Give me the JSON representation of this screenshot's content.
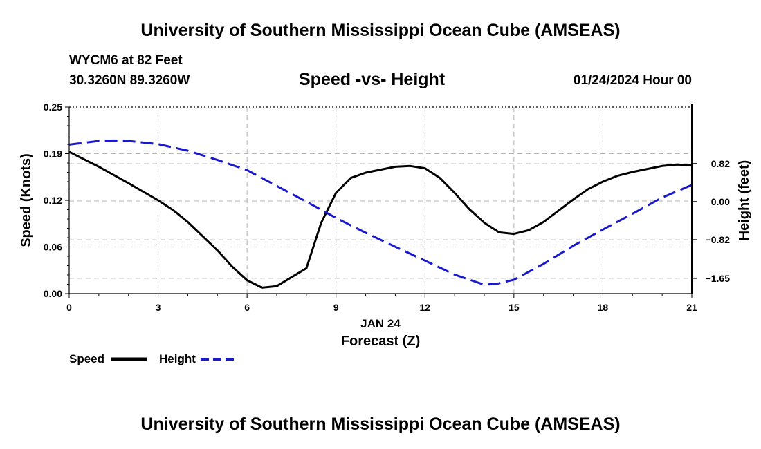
{
  "header": {
    "title": "University of Southern Mississippi Ocean Cube (AMSEAS)",
    "station": "WYCM6 at 82 Feet",
    "coordinates": "30.3260N  89.3260W",
    "chart_title": "Speed -vs- Height",
    "date": "01/24/2024 Hour 00"
  },
  "footer": {
    "title": "University of Southern Mississippi Ocean Cube (AMSEAS)"
  },
  "colors": {
    "speed": "#000000",
    "height": "#1a1acc",
    "grid": "#b4b4b4"
  },
  "chart_data": {
    "type": "line",
    "title": "Speed -vs- Height",
    "xlabel": "Forecast (Z)",
    "xlabel_date": "JAN 24",
    "ylabel": "Speed (Knots)",
    "y2label": "Height (feet)",
    "xlim": [
      0,
      21
    ],
    "ylim": [
      0,
      0.25
    ],
    "y2lim": [
      -1.98,
      2.04
    ],
    "xticks": [
      0,
      3,
      6,
      9,
      12,
      15,
      18,
      21
    ],
    "xtick_labels": [
      "0",
      "3",
      "6",
      "9",
      "12",
      "15",
      "18",
      "21"
    ],
    "yticks": [
      0,
      0.0625,
      0.125,
      0.1875,
      0.25
    ],
    "ytick_labels": [
      "0.00",
      "0.06",
      "0.12",
      "0.19",
      "0.25"
    ],
    "y2ticks": [
      -1.65,
      -0.82,
      0,
      0.82
    ],
    "y2tick_labels": [
      "−1.65",
      "−0.82",
      "0.00",
      "0.82"
    ],
    "grid": true,
    "legend_position": "bottom-left",
    "series": [
      {
        "name": "Speed",
        "axis": "left",
        "style": "solid",
        "x": [
          0,
          1,
          2,
          3,
          3.5,
          4,
          5,
          5.5,
          6,
          6.5,
          7,
          8,
          8.5,
          9,
          9.5,
          10,
          11,
          11.5,
          12,
          12.5,
          13,
          13.5,
          14,
          14.5,
          15,
          15.5,
          16,
          16.5,
          17,
          17.5,
          18,
          18.5,
          19,
          19.5,
          20,
          20.5,
          21
        ],
        "values": [
          0.19,
          0.17,
          0.148,
          0.125,
          0.112,
          0.096,
          0.058,
          0.036,
          0.018,
          0.008,
          0.01,
          0.034,
          0.095,
          0.135,
          0.155,
          0.162,
          0.17,
          0.171,
          0.168,
          0.155,
          0.135,
          0.113,
          0.095,
          0.082,
          0.08,
          0.085,
          0.096,
          0.111,
          0.126,
          0.14,
          0.15,
          0.158,
          0.163,
          0.167,
          0.171,
          0.173,
          0.172
        ]
      },
      {
        "name": "Height",
        "axis": "right",
        "style": "dashed",
        "x": [
          0,
          1,
          1.5,
          2,
          3,
          4,
          5,
          6,
          7,
          8,
          9,
          10,
          11,
          12,
          13,
          14,
          14.5,
          15,
          16,
          17,
          18,
          19,
          20,
          21
        ],
        "values": [
          1.23,
          1.31,
          1.32,
          1.31,
          1.24,
          1.1,
          0.9,
          0.68,
          0.34,
          0.0,
          -0.35,
          -0.67,
          -0.97,
          -1.27,
          -1.57,
          -1.79,
          -1.76,
          -1.68,
          -1.34,
          -0.95,
          -0.6,
          -0.26,
          0.09,
          0.36
        ]
      }
    ]
  }
}
